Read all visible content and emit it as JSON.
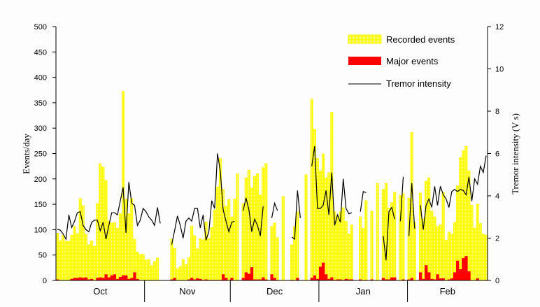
{
  "chart_data": {
    "type": "bar",
    "title": "",
    "xlabel": "",
    "ylabel": "Events/day",
    "y2label": "Tremor intensity (V s)",
    "ylim": [
      0,
      500
    ],
    "y2lim": [
      0,
      12
    ],
    "yticks": [
      0,
      50,
      100,
      150,
      200,
      250,
      300,
      350,
      400,
      450,
      500
    ],
    "y2ticks": [
      0,
      2,
      4,
      6,
      8,
      10,
      12
    ],
    "months": [
      {
        "label": "Oct",
        "days": 31
      },
      {
        "label": "Nov",
        "days": 30
      },
      {
        "label": "Dec",
        "days": 31
      },
      {
        "label": "Jan",
        "days": 31
      },
      {
        "label": "Feb",
        "days": 28
      }
    ],
    "legend": {
      "placement": "top-right",
      "entries": [
        "Recorded events",
        "Major events",
        "Tremor intensity"
      ]
    },
    "colors": {
      "recorded": "#ffff00",
      "major": "#ff0000",
      "tremor": "#000000"
    },
    "series": [
      {
        "name": "Recorded events",
        "axis": "left",
        "kind": "bar",
        "values": [
          93,
          78,
          89,
          77,
          77,
          89,
          106,
          92,
          161,
          147,
          91,
          70,
          78,
          67,
          151,
          230,
          223,
          197,
          117,
          113,
          114,
          103,
          131,
          372,
          160,
          131,
          161,
          81,
          56,
          51,
          51,
          40,
          41,
          29,
          37,
          44,
          null,
          null,
          null,
          null,
          81,
          63,
          23,
          27,
          41,
          31,
          45,
          107,
          88,
          62,
          82,
          80,
          115,
          82,
          104,
          139,
          184,
          240,
          180,
          146,
          159,
          125,
          160,
          210,
          null,
          151,
          202,
          217,
          182,
          205,
          210,
          168,
          222,
          230,
          null,
          106,
          113,
          84,
          null,
          165,
          null,
          null,
          70,
          106,
          135,
          null,
          null,
          208,
          null,
          357,
          298,
          240,
          216,
          249,
          202,
          212,
          331,
          135,
          125,
          135,
          143,
          116,
          91,
          109,
          null,
          null,
          125,
          102,
          157,
          null,
          136,
          null,
          191,
          null,
          179,
          191,
          142,
          153,
          173,
          null,
          167,
          171,
          null,
          162,
          291,
          114,
          null,
          172,
          121,
          195,
          202,
          136,
          125,
          106,
          109,
          173,
          79,
          95,
          91,
          114,
          186,
          242,
          255,
          264,
          216,
          148,
          103,
          150,
          112,
          91,
          89
        ]
      },
      {
        "name": "Major events",
        "axis": "left",
        "kind": "bar",
        "values": [
          2,
          0,
          0,
          0,
          0,
          3,
          5,
          5,
          6,
          5,
          6,
          2,
          3,
          0,
          5,
          6,
          5,
          12,
          6,
          10,
          12,
          3,
          7,
          10,
          10,
          3,
          5,
          16,
          3,
          0,
          0,
          0,
          0,
          0,
          0,
          0,
          null,
          null,
          null,
          null,
          2,
          5,
          0,
          0,
          0,
          0,
          2,
          5,
          2,
          4,
          3,
          1,
          2,
          1,
          1,
          1,
          1,
          1,
          12,
          5,
          0,
          5,
          0,
          0,
          null,
          5,
          16,
          13,
          26,
          2,
          2,
          2,
          6,
          2,
          null,
          12,
          5,
          1,
          null,
          0,
          null,
          null,
          1,
          0,
          5,
          null,
          null,
          0,
          null,
          5,
          10,
          3,
          27,
          35,
          12,
          3,
          6,
          1,
          2,
          2,
          1,
          3,
          2,
          2,
          null,
          null,
          2,
          0,
          1,
          null,
          2,
          null,
          0,
          null,
          5,
          2,
          2,
          6,
          6,
          null,
          0,
          2,
          null,
          2,
          5,
          0,
          null,
          16,
          3,
          30,
          16,
          3,
          2,
          12,
          4,
          4,
          0,
          2,
          4,
          16,
          39,
          22,
          44,
          48,
          18,
          0,
          0,
          4,
          0,
          0,
          1
        ]
      },
      {
        "name": "Tremor intensity",
        "axis": "right",
        "kind": "line",
        "values": [
          2.41,
          2.38,
          2.2,
          1.95,
          3.1,
          2.5,
          2.8,
          3.2,
          3.25,
          2.6,
          2.4,
          2.3,
          2.75,
          2.85,
          2.85,
          2.35,
          2.75,
          1.95,
          2.6,
          3.2,
          3.2,
          3.1,
          3.75,
          4.4,
          2.25,
          4.65,
          3.65,
          3.55,
          2.6,
          2.85,
          3.4,
          3.25,
          3.0,
          2.85,
          2.6,
          3.45,
          2.7,
          null,
          null,
          null,
          1.7,
          2.35,
          3.05,
          2.6,
          2.0,
          2.8,
          2.95,
          2.8,
          3.4,
          3.4,
          2.48,
          3.1,
          1.9,
          2.3,
          3.77,
          3.4,
          6.0,
          5.15,
          3.35,
          2.8,
          2.3,
          2.75,
          2.8,
          null,
          null,
          3.3,
          3.9,
          3.35,
          2.3,
          2.9,
          2.6,
          2.1,
          3.5,
          null,
          null,
          2.95,
          3.65,
          3.3,
          null,
          null,
          null,
          null,
          2.05,
          1.95,
          4.25,
          2.95,
          null,
          null,
          null,
          5.4,
          6.35,
          3.4,
          3.4,
          3.55,
          4.25,
          3.1,
          5.1,
          2.6,
          3.1,
          2.75,
          4.8,
          3.4,
          3.15,
          3.2,
          null,
          null,
          3.25,
          4.2,
          4.15,
          null,
          null,
          null,
          null,
          null,
          2.1,
          0.95,
          3.25,
          3.45,
          2.9,
          null,
          2.8,
          4.9,
          null,
          2.1,
          4.6,
          2.45,
          null,
          3.55,
          2.4,
          3.55,
          3.85,
          3.45,
          4.45,
          3.55,
          4.45,
          4.05,
          3.85,
          3.45,
          4.2,
          4.3,
          4.2,
          4.3,
          4.25,
          4.05,
          4.9,
          3.75,
          4.8,
          4.55,
          5.4,
          5.1,
          5.9
        ]
      }
    ]
  }
}
